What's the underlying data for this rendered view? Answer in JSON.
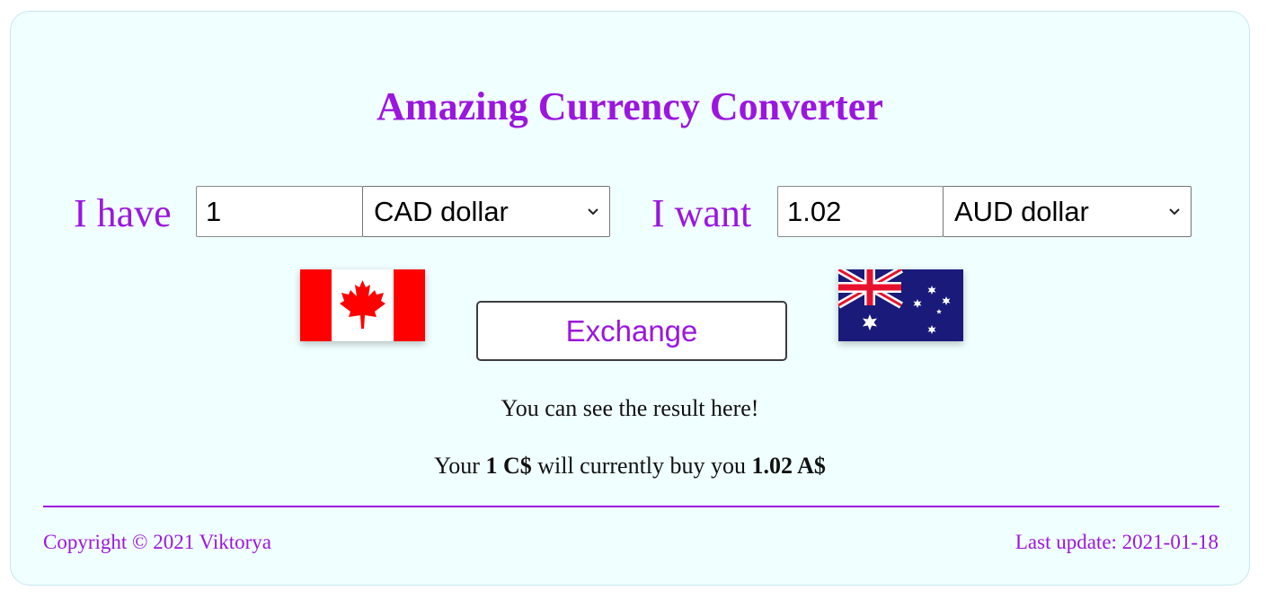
{
  "page": {
    "title": "Amazing Currency Converter"
  },
  "converter": {
    "have_label": "I have",
    "want_label": "I want",
    "from_amount": "1",
    "from_currency": "CAD dollar",
    "to_amount": "1.02",
    "to_currency": "AUD dollar",
    "exchange_label": "Exchange"
  },
  "result": {
    "hint": "You can see the result here!",
    "prefix": "Your",
    "from_value": "1 C$",
    "middle": "will currently buy you",
    "to_value": "1.02 A$"
  },
  "footer": {
    "copyright": "Copyright © 2021 Viktorya",
    "last_update": "Last update: 2021-01-18"
  },
  "flags": {
    "from": "canada-flag",
    "to": "australia-flag"
  },
  "colors": {
    "accent": "#9b16e0",
    "card_bg": "#f0ffff"
  }
}
